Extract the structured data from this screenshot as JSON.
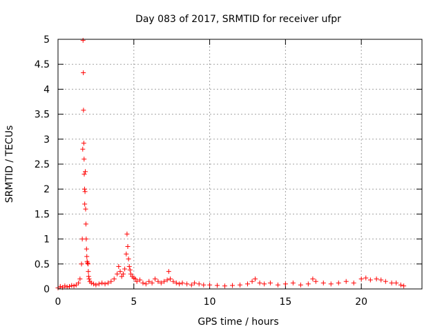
{
  "chart_data": {
    "type": "scatter",
    "title": "Day 083 of 2017, SRMTID for receiver ufpr",
    "xlabel": "GPS time / hours",
    "ylabel": "SRMTID / TECUs",
    "xlim": [
      0,
      24
    ],
    "ylim": [
      0,
      5
    ],
    "xticks": [
      0,
      5,
      10,
      15,
      20
    ],
    "xtick_labels": [
      "0",
      "5",
      "10",
      "15",
      "20"
    ],
    "yticks": [
      0,
      0.5,
      1,
      1.5,
      2,
      2.5,
      3,
      3.5,
      4,
      4.5,
      5
    ],
    "ytick_labels": [
      "0",
      "0.5",
      "1",
      "1.5",
      "2",
      "2.5",
      "3",
      "3.5",
      "4",
      "4.5",
      "5"
    ],
    "grid": true,
    "marker": "+",
    "series": [
      {
        "name": "SRMTID",
        "color": "#ff0000",
        "x": [
          0.0,
          0.15,
          0.3,
          0.45,
          0.6,
          0.75,
          0.9,
          1.05,
          1.2,
          1.35,
          1.45,
          1.55,
          1.6,
          1.63,
          1.65,
          1.67,
          1.68,
          1.7,
          1.72,
          1.73,
          1.75,
          1.76,
          1.78,
          1.8,
          1.82,
          1.84,
          1.86,
          1.88,
          1.9,
          1.92,
          1.95,
          1.98,
          2.0,
          2.02,
          2.05,
          2.1,
          2.2,
          2.35,
          2.5,
          2.7,
          2.9,
          3.1,
          3.3,
          3.5,
          3.7,
          3.9,
          4.0,
          4.1,
          4.2,
          4.3,
          4.4,
          4.5,
          4.55,
          4.6,
          4.65,
          4.7,
          4.75,
          4.8,
          4.9,
          5.0,
          5.1,
          5.2,
          5.4,
          5.6,
          5.8,
          6.0,
          6.2,
          6.4,
          6.6,
          6.8,
          7.0,
          7.2,
          7.3,
          7.4,
          7.6,
          7.8,
          8.0,
          8.2,
          8.5,
          8.8,
          9.0,
          9.3,
          9.6,
          10.0,
          10.5,
          11.0,
          11.5,
          12.0,
          12.5,
          12.8,
          13.0,
          13.3,
          13.6,
          14.0,
          14.5,
          15.0,
          15.5,
          16.0,
          16.5,
          16.8,
          17.0,
          17.5,
          18.0,
          18.5,
          19.0,
          19.5,
          20.0,
          20.3,
          20.6,
          21.0,
          21.3,
          21.6,
          22.0,
          22.3,
          22.6,
          22.8
        ],
        "y": [
          0.02,
          0.05,
          0.03,
          0.06,
          0.04,
          0.05,
          0.07,
          0.06,
          0.08,
          0.12,
          0.2,
          0.5,
          1.0,
          2.8,
          4.98,
          4.33,
          3.58,
          2.92,
          2.6,
          2.3,
          2.0,
          1.7,
          1.95,
          2.35,
          1.6,
          1.3,
          1.0,
          0.8,
          0.65,
          0.55,
          0.52,
          0.5,
          0.35,
          0.25,
          0.2,
          0.15,
          0.12,
          0.1,
          0.08,
          0.1,
          0.12,
          0.1,
          0.12,
          0.15,
          0.2,
          0.3,
          0.45,
          0.35,
          0.25,
          0.3,
          0.4,
          0.7,
          1.1,
          0.85,
          0.6,
          0.45,
          0.38,
          0.3,
          0.25,
          0.22,
          0.2,
          0.15,
          0.18,
          0.12,
          0.1,
          0.15,
          0.12,
          0.2,
          0.15,
          0.12,
          0.15,
          0.18,
          0.35,
          0.2,
          0.15,
          0.12,
          0.1,
          0.12,
          0.1,
          0.08,
          0.12,
          0.1,
          0.08,
          0.08,
          0.07,
          0.06,
          0.07,
          0.08,
          0.1,
          0.15,
          0.2,
          0.12,
          0.1,
          0.12,
          0.08,
          0.1,
          0.12,
          0.08,
          0.1,
          0.2,
          0.15,
          0.12,
          0.1,
          0.12,
          0.15,
          0.12,
          0.2,
          0.22,
          0.18,
          0.2,
          0.18,
          0.15,
          0.12,
          0.12,
          0.08,
          0.06
        ]
      }
    ]
  }
}
